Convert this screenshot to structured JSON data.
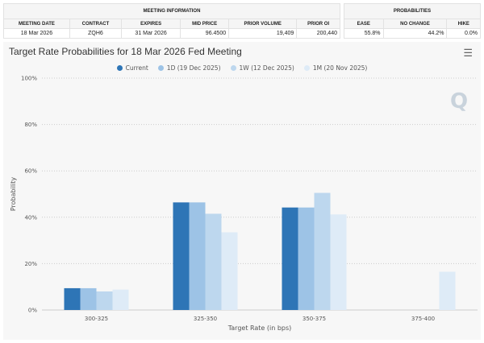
{
  "meeting_info": {
    "header": "MEETING INFORMATION",
    "columns": [
      "MEETING DATE",
      "CONTRACT",
      "EXPIRES",
      "MID PRICE",
      "PRIOR VOLUME",
      "PRIOR OI"
    ],
    "values": [
      "18 Mar 2026",
      "ZQH6",
      "31 Mar 2026",
      "96.4500",
      "19,409",
      "200,440"
    ]
  },
  "probabilities": {
    "header": "PROBABILITIES",
    "columns": [
      "EASE",
      "NO CHANGE",
      "HIKE"
    ],
    "values": [
      "55.8%",
      "44.2%",
      "0.0%"
    ]
  },
  "menu_icon": "hamburger-menu-icon",
  "watermark": "Q",
  "chart_data": {
    "type": "bar",
    "title": "Target Rate Probabilities for 18 Mar 2026 Fed Meeting",
    "xlabel": "Target Rate (in bps)",
    "ylabel": "Probability",
    "categories": [
      "300-325",
      "325-350",
      "350-375",
      "375-400"
    ],
    "ylim": [
      0,
      100
    ],
    "yticks": [
      "0%",
      "20%",
      "40%",
      "60%",
      "80%",
      "100%"
    ],
    "grid": true,
    "legend_position": "top",
    "series": [
      {
        "name": "Current",
        "color": "#2e75b6",
        "values": [
          9.4,
          46.4,
          44.2,
          0
        ]
      },
      {
        "name": "1D (19 Dec 2025)",
        "color": "#9dc3e6",
        "values": [
          9.4,
          46.4,
          44.2,
          0
        ]
      },
      {
        "name": "1W (12 Dec 2025)",
        "color": "#bdd7ee",
        "values": [
          8.0,
          41.5,
          50.5,
          0
        ]
      },
      {
        "name": "1M (20 Nov 2025)",
        "color": "#deebf7",
        "values": [
          8.8,
          33.5,
          41.2,
          16.5
        ]
      }
    ]
  }
}
